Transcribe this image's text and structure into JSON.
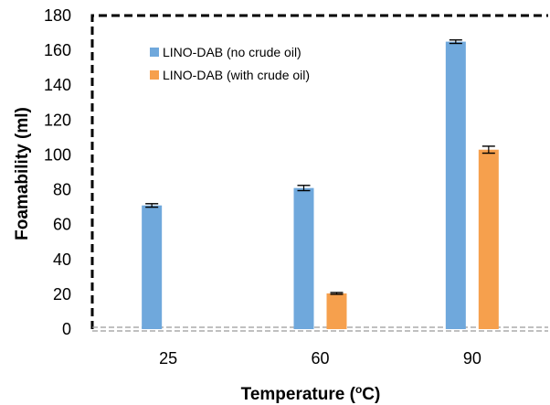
{
  "chart_data": {
    "type": "bar",
    "title": "",
    "xlabel": "Temperature (",
    "xlabel_sup": "o",
    "xlabel_unit": "C)",
    "ylabel": "Foamability (ml)",
    "categories": [
      "25",
      "60",
      "90"
    ],
    "ylim": [
      0,
      180
    ],
    "yticks": [
      0,
      20,
      40,
      60,
      80,
      100,
      120,
      140,
      160,
      180
    ],
    "grid": false,
    "legend_position": "top-left",
    "error_bars": true,
    "series": [
      {
        "name": "LINO-DAB (no crude oil)",
        "color": "#6fa8dc",
        "values": [
          71,
          81,
          165
        ],
        "errors": [
          1,
          1.5,
          1
        ]
      },
      {
        "name": "LINO-DAB (with crude oil)",
        "color": "#f6a04d",
        "values": [
          0,
          20.5,
          103
        ],
        "errors": [
          0,
          0.5,
          2
        ]
      }
    ]
  }
}
